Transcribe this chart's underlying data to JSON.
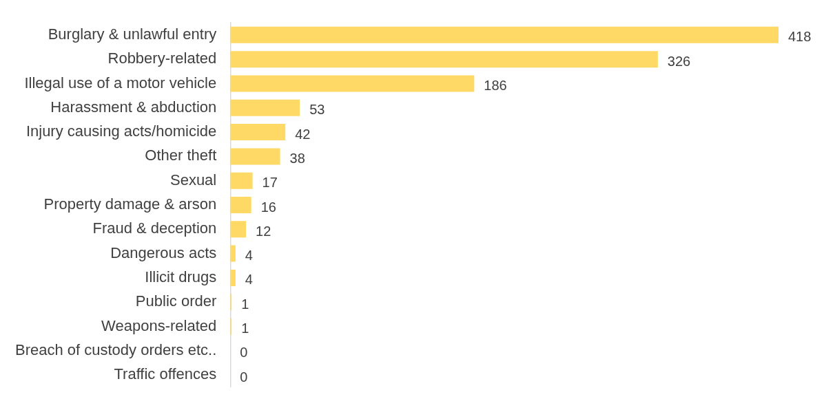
{
  "chart_data": {
    "type": "bar",
    "orientation": "horizontal",
    "categories": [
      "Burglary & unlawful entry",
      "Robbery-related",
      "Illegal use of a motor vehicle",
      "Harassment & abduction",
      "Injury causing acts/homicide",
      "Other theft",
      "Sexual",
      "Property damage & arson",
      "Fraud & deception",
      "Dangerous acts",
      "Illicit drugs",
      "Public order",
      "Weapons-related",
      "Breach of custody orders etc..",
      "Traffic offences"
    ],
    "values": [
      418,
      326,
      186,
      53,
      42,
      38,
      17,
      16,
      12,
      4,
      4,
      1,
      1,
      0,
      0
    ],
    "color": "#ffd966",
    "data_labels": true
  }
}
